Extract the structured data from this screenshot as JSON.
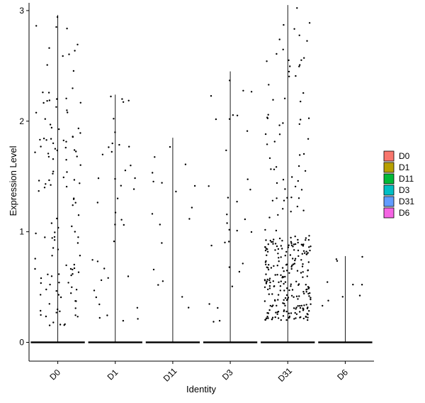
{
  "chart_data": {
    "type": "violin",
    "title": "",
    "xlabel": "Identity",
    "ylabel": "Expression Level",
    "ylim": [
      -0.17,
      3.07
    ],
    "yticks": [
      0,
      1,
      2,
      3
    ],
    "grid": false,
    "legend_position": "right",
    "categories": [
      "D0",
      "D1",
      "D11",
      "D3",
      "D31",
      "D6"
    ],
    "colors": [
      "#F8766D",
      "#B79F00",
      "#00BA38",
      "#00BFC4",
      "#619CFF",
      "#F564E3"
    ],
    "max_values": [
      2.96,
      2.24,
      1.85,
      2.45,
      3.05,
      0.78
    ]
  }
}
